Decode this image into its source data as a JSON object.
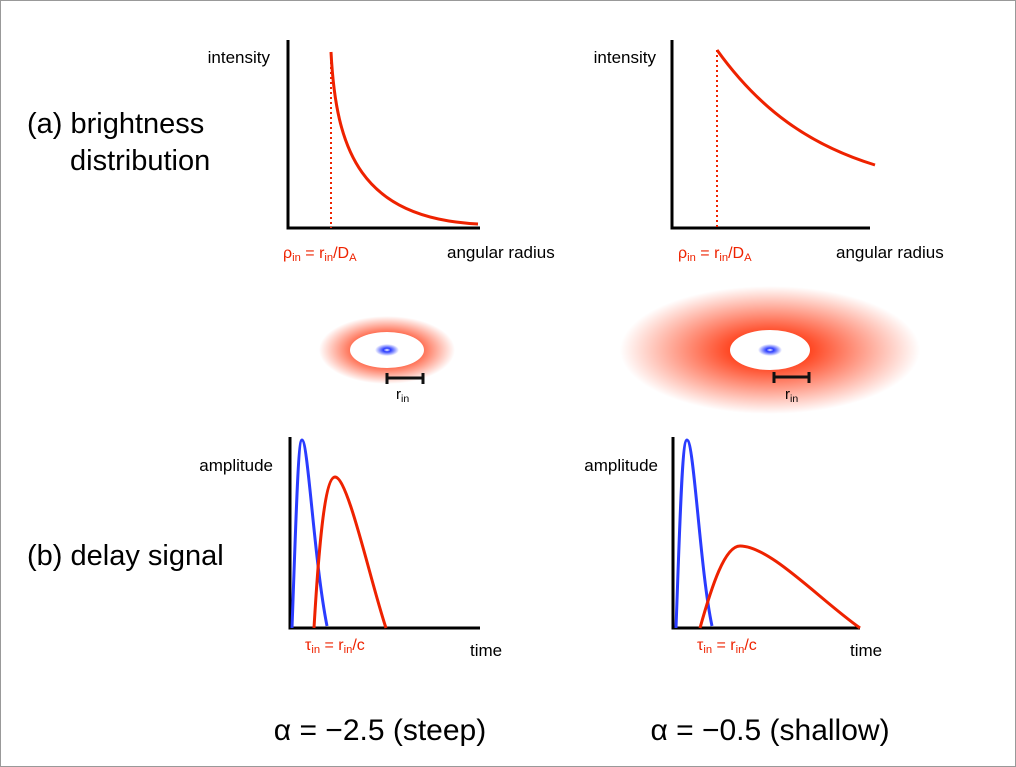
{
  "row_labels": {
    "a": [
      "(a) brightness",
      "distribution"
    ],
    "b": "(b) delay signal"
  },
  "panels": [
    {
      "intensity_label": "intensity",
      "rho_label": [
        "ρ",
        "in",
        " = r",
        "in",
        "/D",
        "A"
      ],
      "x_label": "angular radius",
      "r_label": [
        "r",
        "in"
      ],
      "amplitude_label": "amplitude",
      "tau_label": [
        "τ",
        "in",
        " = r",
        "in",
        "/c"
      ],
      "time_label": "time",
      "caption": "α = −2.5 (steep)"
    },
    {
      "intensity_label": "intensity",
      "rho_label": [
        "ρ",
        "in",
        " = r",
        "in",
        "/D",
        "A"
      ],
      "x_label": "angular radius",
      "r_label": [
        "r",
        "in"
      ],
      "amplitude_label": "amplitude",
      "tau_label": [
        "τ",
        "in",
        " = r",
        "in",
        "/c"
      ],
      "time_label": "time",
      "caption": "α = −0.5 (shallow)"
    }
  ]
}
